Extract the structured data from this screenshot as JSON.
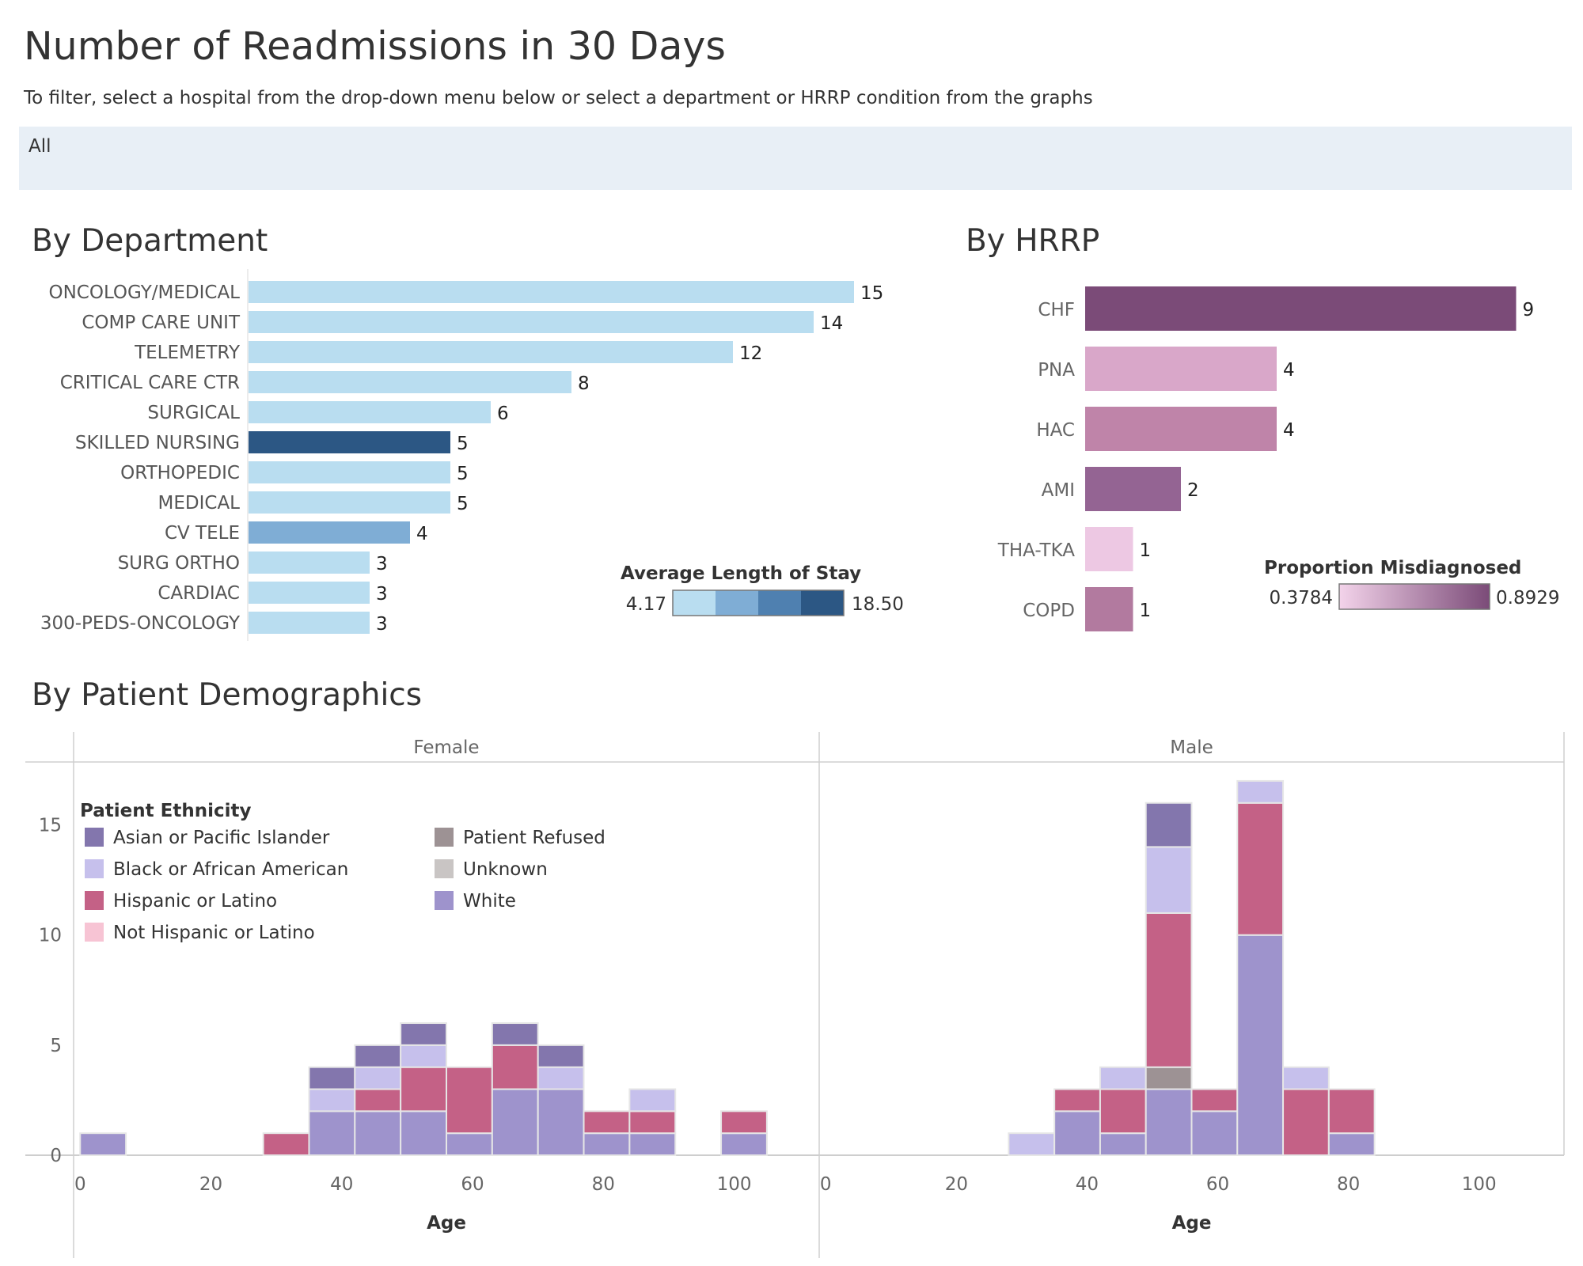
{
  "title": "Number of Readmissions in 30 Days",
  "subtitle": "To filter, select a hospital from the drop-down menu below or select a department or HRRP condition from the graphs",
  "filter": {
    "selected": "All"
  },
  "colors": {
    "dept_light": "#b9ddf0",
    "dept_mid": "#7fadd5",
    "dept_dark": "#2c5784",
    "eth_asian": "#8376ad",
    "eth_black": "#c6c0ec",
    "eth_hispanic": "#c46186",
    "eth_not_hispanic": "#f7c4d4",
    "eth_refused": "#9d9294",
    "eth_unknown": "#c9c5c4",
    "eth_white": "#9e93cc"
  },
  "chart_data": [
    {
      "type": "bar",
      "id": "department",
      "title": "By Department",
      "orientation": "horizontal",
      "categories": [
        "ONCOLOGY/MEDICAL",
        "COMP CARE UNIT",
        "TELEMETRY",
        "CRITICAL CARE CTR",
        "SURGICAL",
        "SKILLED NURSING",
        "ORTHOPEDIC",
        "MEDICAL",
        "CV TELE",
        "SURG ORTHO",
        "CARDIAC",
        "300-PEDS-ONCOLOGY"
      ],
      "values": [
        15,
        14,
        12,
        8,
        6,
        5,
        5,
        5,
        4,
        3,
        3,
        3
      ],
      "colors": [
        "#b9ddf0",
        "#b9ddf0",
        "#b9ddf0",
        "#b9ddf0",
        "#b9ddf0",
        "#2c5784",
        "#b9ddf0",
        "#b9ddf0",
        "#7fadd5",
        "#b9ddf0",
        "#b9ddf0",
        "#b9ddf0"
      ],
      "legend": {
        "title": "Average Length of Stay",
        "min_label": "4.17",
        "max_label": "18.50",
        "steps": [
          "#b9ddf0",
          "#7fadd5",
          "#4f80b0",
          "#2c5784"
        ]
      }
    },
    {
      "type": "bar",
      "id": "hrrp",
      "title": "By HRRP",
      "orientation": "horizontal",
      "categories": [
        "CHF",
        "PNA",
        "HAC",
        "AMI",
        "THA-TKA",
        "COPD"
      ],
      "values": [
        9,
        4,
        4,
        2,
        1,
        1
      ],
      "colors": [
        "#7b4b78",
        "#d9a7c9",
        "#bf84a9",
        "#946493",
        "#edc8e3",
        "#b27a9f"
      ],
      "legend": {
        "title": "Proportion Misdiagnosed",
        "min_label": "0.3784",
        "max_label": "0.8929",
        "gradient": [
          "#f3d3ea",
          "#7b4b78"
        ]
      }
    },
    {
      "type": "bar",
      "id": "demographics",
      "title": "By Patient Demographics",
      "stacked": true,
      "panels": [
        "Female",
        "Male"
      ],
      "xlabel": "Age",
      "x_ticks": [
        0,
        20,
        40,
        60,
        80,
        100
      ],
      "xlim": [
        -1,
        113
      ],
      "y_ticks": [
        0,
        5,
        10,
        15
      ],
      "ylim": [
        0,
        17.5
      ],
      "bin_width": 7,
      "series_names": [
        "Asian or Pacific Islander",
        "Black or African American",
        "Hispanic or Latino",
        "Not Hispanic or Latino",
        "Patient Refused",
        "Unknown",
        "White"
      ],
      "series_colors": [
        "#8376ad",
        "#c6c0ec",
        "#c46186",
        "#f7c4d4",
        "#9d9294",
        "#c9c5c4",
        "#9e93cc"
      ],
      "stack_order": [
        "White",
        "Patient Refused",
        "Hispanic or Latino",
        "Black or African American",
        "Asian or Pacific Islander"
      ],
      "legend": {
        "title": "Patient Ethnicity",
        "items": [
          "Asian or Pacific Islander",
          "Black or African American",
          "Hispanic or Latino",
          "Not Hispanic or Latino",
          "Patient Refused",
          "Unknown",
          "White"
        ]
      },
      "female_bins": [
        {
          "x": 0,
          "White": 1
        },
        {
          "x": 28,
          "Hispanic or Latino": 1
        },
        {
          "x": 35,
          "White": 2,
          "Black or African American": 1,
          "Asian or Pacific Islander": 1
        },
        {
          "x": 42,
          "White": 2,
          "Hispanic or Latino": 1,
          "Black or African American": 1,
          "Asian or Pacific Islander": 1
        },
        {
          "x": 49,
          "White": 2,
          "Hispanic or Latino": 2,
          "Black or African American": 1,
          "Asian or Pacific Islander": 1
        },
        {
          "x": 56,
          "White": 1,
          "Hispanic or Latino": 3
        },
        {
          "x": 63,
          "White": 3,
          "Hispanic or Latino": 2,
          "Asian or Pacific Islander": 1
        },
        {
          "x": 70,
          "White": 3,
          "Black or African American": 1,
          "Asian or Pacific Islander": 1
        },
        {
          "x": 77,
          "White": 1,
          "Hispanic or Latino": 1
        },
        {
          "x": 84,
          "White": 1,
          "Hispanic or Latino": 1,
          "Black or African American": 1
        },
        {
          "x": 98,
          "White": 1,
          "Hispanic or Latino": 1
        }
      ],
      "male_bins": [
        {
          "x": 28,
          "Black or African American": 1
        },
        {
          "x": 35,
          "White": 2,
          "Hispanic or Latino": 1
        },
        {
          "x": 42,
          "White": 1,
          "Hispanic or Latino": 2,
          "Black or African American": 1
        },
        {
          "x": 49,
          "White": 3,
          "Patient Refused": 1,
          "Hispanic or Latino": 7,
          "Black or African American": 3,
          "Asian or Pacific Islander": 2
        },
        {
          "x": 56,
          "White": 2,
          "Hispanic or Latino": 1
        },
        {
          "x": 63,
          "White": 10,
          "Hispanic or Latino": 6,
          "Black or African American": 1
        },
        {
          "x": 70,
          "Hispanic or Latino": 3,
          "Black or African American": 1
        },
        {
          "x": 77,
          "White": 1,
          "Hispanic or Latino": 2
        }
      ]
    }
  ]
}
